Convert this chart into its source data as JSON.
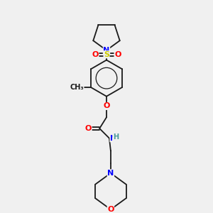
{
  "bg_color": "#f0f0f0",
  "bond_color": "#1a1a1a",
  "atom_colors": {
    "N": "#0000ff",
    "O": "#ff0000",
    "S": "#cccc00",
    "H": "#4a9a9a",
    "C": "#1a1a1a"
  },
  "font_size": 8,
  "line_width": 1.3
}
